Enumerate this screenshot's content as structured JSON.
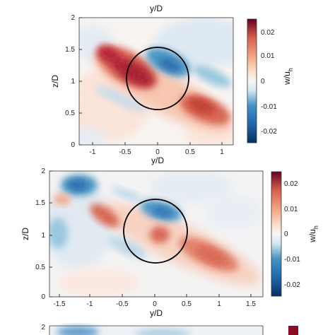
{
  "chart_data": [
    {
      "type": "heatmap",
      "panel": "top",
      "xlabel": "y/D",
      "ylabel": "z/D",
      "top_xlabel": "y/D",
      "xlim": [
        -1.35,
        1.35
      ],
      "ylim": [
        0,
        2
      ],
      "x_ticks": [
        "-1",
        "-0.5",
        "0",
        "0.5",
        "1"
      ],
      "y_ticks": [
        "0",
        "0.5",
        "1",
        "1.5",
        "2"
      ],
      "colorbar": {
        "label": "w/u",
        "label_sub": "h",
        "range": [
          -0.025,
          0.025
        ],
        "ticks": [
          "0.02",
          "0.01",
          "0",
          "-0.01",
          "-0.02"
        ],
        "colormap": "blue-white-red"
      },
      "rotor": {
        "center_y": 0,
        "center_z": 1,
        "radius": 0.5
      },
      "features": [
        {
          "y": -0.5,
          "z": 1.2,
          "w": 0.022
        },
        {
          "y": -0.85,
          "z": 1.42,
          "w": 0.018
        },
        {
          "y": 0.7,
          "z": 0.6,
          "w": 0.017
        },
        {
          "y": 0.1,
          "z": 1.35,
          "w": -0.014
        },
        {
          "y": 0.9,
          "z": 1.05,
          "w": -0.006
        },
        {
          "y": -1.0,
          "z": 1.8,
          "w": -0.005
        }
      ]
    },
    {
      "type": "heatmap",
      "panel": "middle",
      "xlabel": "y/D",
      "ylabel": "z/D",
      "xlim": [
        -1.75,
        1.75
      ],
      "ylim": [
        0,
        2
      ],
      "x_ticks": [
        "-1.5",
        "-1",
        "-0.5",
        "0",
        "0.5",
        "1",
        "1.5"
      ],
      "y_ticks": [
        "0",
        "0.5",
        "1",
        "1.5",
        "2"
      ],
      "colorbar": {
        "label": "w/u",
        "label_sub": "h",
        "range": [
          -0.025,
          0.025
        ],
        "ticks": [
          "0.02",
          "0.01",
          "0",
          "-0.01",
          "-0.02"
        ],
        "colormap": "blue-white-red"
      },
      "rotor": {
        "center_y": 0,
        "center_z": 1.05,
        "radius": 0.5
      },
      "features": [
        {
          "y": -1.3,
          "z": 1.85,
          "w": -0.02
        },
        {
          "y": 0.1,
          "z": 1.4,
          "w": -0.015
        },
        {
          "y": -0.8,
          "z": 1.2,
          "w": 0.014
        },
        {
          "y": 0.4,
          "z": 0.85,
          "w": 0.012
        },
        {
          "y": 1.1,
          "z": 0.7,
          "w": 0.012
        },
        {
          "y": -1.4,
          "z": 1.05,
          "w": -0.008
        }
      ]
    },
    {
      "type": "heatmap",
      "panel": "bottom (cropped)",
      "ylim_top_tick": "2"
    }
  ]
}
